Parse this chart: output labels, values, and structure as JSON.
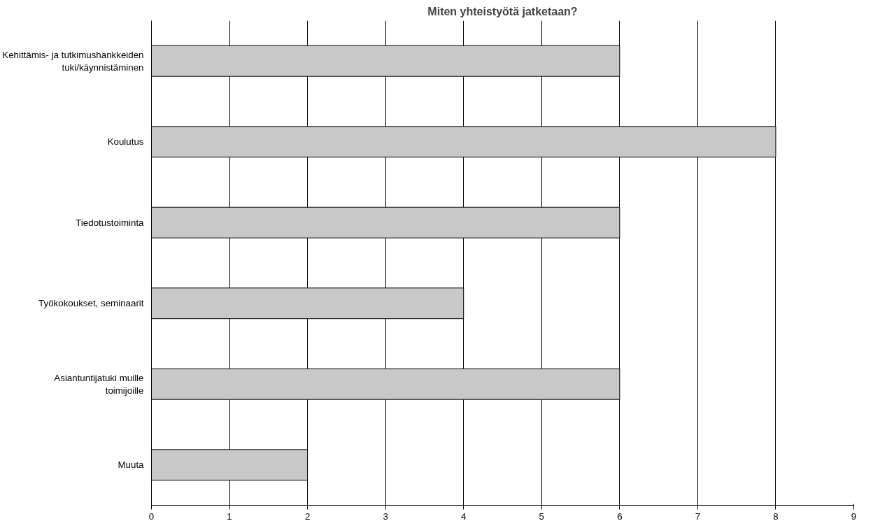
{
  "chart_data": {
    "type": "bar",
    "orientation": "horizontal",
    "title": "Miten yhteistyötä jatketaan?",
    "categories": [
      "Kehittämis- ja tutkimushankkeiden tuki/käynnistäminen",
      "Koulutus",
      "Tiedotustoiminta",
      "Työkokoukset, seminaarit",
      "Asiantuntijatuki muille toimijoille",
      "Muuta"
    ],
    "values": [
      6,
      8,
      6,
      4,
      6,
      2
    ],
    "color": "#c8c8c8",
    "xlim": [
      0,
      9
    ],
    "xticks": [
      0,
      1,
      2,
      3,
      4,
      5,
      6,
      7,
      8,
      9
    ],
    "grid": "x"
  }
}
